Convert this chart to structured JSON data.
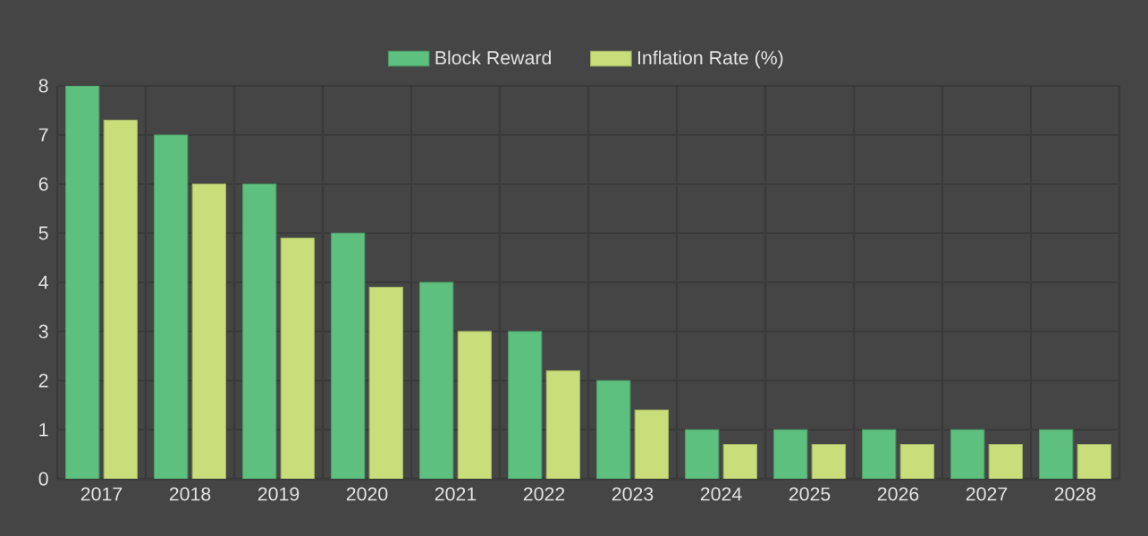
{
  "chart_data": {
    "type": "bar",
    "categories": [
      "2017",
      "2018",
      "2019",
      "2020",
      "2021",
      "2022",
      "2023",
      "2024",
      "2025",
      "2026",
      "2027",
      "2028"
    ],
    "series": [
      {
        "name": "Block Reward",
        "color": "#5ec07f",
        "values": [
          8,
          7,
          6,
          5,
          4,
          3,
          2,
          1,
          1,
          1,
          1,
          1
        ]
      },
      {
        "name": "Inflation Rate (%)",
        "color": "#c9de7a",
        "values": [
          7.3,
          6.0,
          4.9,
          3.9,
          3.0,
          2.2,
          1.4,
          0.7,
          0.7,
          0.7,
          0.7,
          0.7
        ]
      }
    ],
    "ylim": [
      0,
      8
    ],
    "yticks": [
      0,
      1,
      2,
      3,
      4,
      5,
      6,
      7,
      8
    ],
    "grid": true,
    "legend": "top"
  }
}
